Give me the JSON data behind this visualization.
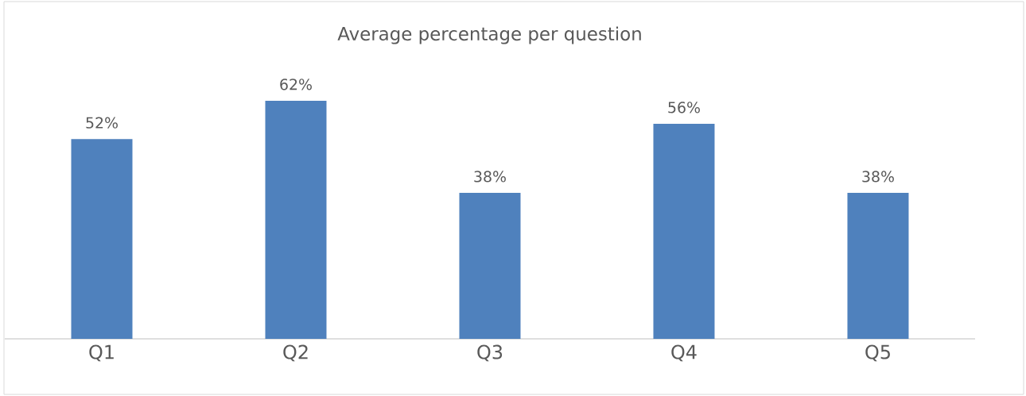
{
  "chart_data": {
    "type": "bar",
    "title": "Average percentage per question",
    "categories": [
      "Q1",
      "Q2",
      "Q3",
      "Q4",
      "Q5"
    ],
    "values": [
      52,
      62,
      38,
      56,
      38
    ],
    "value_labels": [
      "52%",
      "62%",
      "38%",
      "56%",
      "38%"
    ],
    "color": "#4f81bd"
  }
}
